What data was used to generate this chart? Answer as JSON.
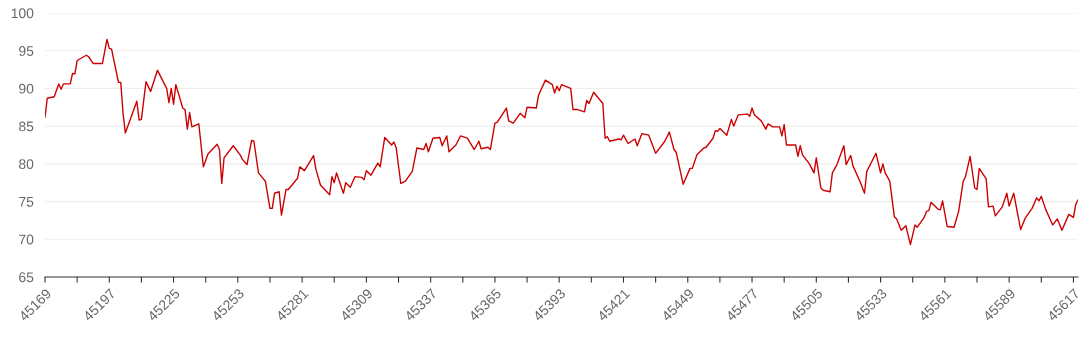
{
  "chart_data": {
    "type": "line",
    "grid": "y",
    "marker": "none",
    "line_style": "solid",
    "xlim": [
      45169,
      45619
    ],
    "ylim": [
      65,
      100
    ],
    "yticks": [
      65,
      70,
      75,
      80,
      85,
      90,
      95,
      100
    ],
    "xticks": [
      45169,
      {
        "value": 45183,
        "label": null
      },
      45197,
      {
        "value": 45211,
        "label": null
      },
      45225,
      {
        "value": 45239,
        "label": null
      },
      45253,
      {
        "value": 45267,
        "label": null
      },
      45281,
      {
        "value": 45295,
        "label": null
      },
      45309,
      {
        "value": 45323,
        "label": null
      },
      45337,
      {
        "value": 45351,
        "label": null
      },
      45365,
      {
        "value": 45379,
        "label": null
      },
      45393,
      {
        "value": 45407,
        "label": null
      },
      45421,
      {
        "value": 45435,
        "label": null
      },
      45449,
      {
        "value": 45463,
        "label": null
      },
      45477,
      {
        "value": 45491,
        "label": null
      },
      45505,
      {
        "value": 45519,
        "label": null
      },
      45533,
      {
        "value": 45547,
        "label": null
      },
      45561,
      {
        "value": 45575,
        "label": null
      },
      45589,
      {
        "value": 45603,
        "label": null
      },
      45617
    ],
    "x": [
      45169,
      45170,
      45173,
      45175,
      45176,
      45177,
      45180,
      45181,
      45182,
      45183,
      45187,
      45188,
      45190,
      45194,
      45196,
      45197,
      45198,
      45201,
      45202,
      45203,
      45204,
      45209,
      45210,
      45211,
      45213,
      45215,
      45218,
      45222,
      45223,
      45224,
      45225,
      45226,
      45229,
      45230,
      45231,
      45232,
      45233,
      45236,
      45238,
      45240,
      45244,
      45245,
      45246,
      45247,
      45251,
      45254,
      45255,
      45257,
      45259,
      45260,
      45262,
      45265,
      45267,
      45268,
      45269,
      45271,
      45272,
      45274,
      45275,
      45279,
      45280,
      45282,
      45286,
      45287,
      45289,
      45293,
      45294,
      45295,
      45296,
      45299,
      45300,
      45302,
      45304,
      45307,
      45308,
      45309,
      45311,
      45314,
      45315,
      45317,
      45320,
      45321,
      45322,
      45324,
      45326,
      45329,
      45331,
      45334,
      45335,
      45336,
      45338,
      45341,
      45342,
      45344,
      45345,
      45348,
      45350,
      45353,
      45356,
      45358,
      45359,
      45362,
      45363,
      45365,
      45366,
      45370,
      45371,
      45373,
      45376,
      45378,
      45379,
      45383,
      45384,
      45387,
      45390,
      45391,
      45392,
      45393,
      45394,
      45398,
      45399,
      45401,
      45404,
      45405,
      45406,
      45408,
      45412,
      45413,
      45414,
      45415,
      45419,
      45420,
      45421,
      45423,
      45426,
      45427,
      45429,
      45432,
      45435,
      45439,
      45441,
      45443,
      45444,
      45447,
      45450,
      45451,
      45453,
      45456,
      45457,
      45460,
      45461,
      45462,
      45463,
      45466,
      45468,
      45469,
      45471,
      45475,
      45476,
      45477,
      45478,
      45481,
      45483,
      45484,
      45486,
      45489,
      45490,
      45491,
      45492,
      45496,
      45497,
      45498,
      45499,
      45502,
      45504,
      45505,
      45507,
      45508,
      45511,
      45512,
      45514,
      45517,
      45518,
      45520,
      45521,
      45524,
      45526,
      45527,
      45531,
      45533,
      45534,
      45535,
      45537,
      45539,
      45540,
      45542,
      45544,
      45546,
      45548,
      45549,
      45552,
      45553,
      45554,
      45555,
      45558,
      45559,
      45560,
      45562,
      45565,
      45567,
      45569,
      45570,
      45572,
      45574,
      45575,
      45576,
      45579,
      45580,
      45582,
      45583,
      45586,
      45588,
      45589,
      45591,
      45594,
      45596,
      45599,
      45601,
      45602,
      45603,
      45605,
      45608,
      45610,
      45612,
      45615,
      45617,
      45618,
      45619
    ],
    "series": [
      {
        "color": "#cc0000",
        "values": [
          86.2,
          88.7,
          88.9,
          90.6,
          89.9,
          90.6,
          90.6,
          92.0,
          91.9,
          93.7,
          94.4,
          94.2,
          93.3,
          93.3,
          96.5,
          95.3,
          95.2,
          90.8,
          90.8,
          86.7,
          84.1,
          88.3,
          85.8,
          85.9,
          90.9,
          89.6,
          92.4,
          90.0,
          88.1,
          90.0,
          87.9,
          90.5,
          87.4,
          87.2,
          84.6,
          86.8,
          84.9,
          85.3,
          79.6,
          81.3,
          82.6,
          81.9,
          77.4,
          80.8,
          82.4,
          81.2,
          80.6,
          79.9,
          83.1,
          83.0,
          78.8,
          77.7,
          74.1,
          74.1,
          76.1,
          76.3,
          73.2,
          76.6,
          76.6,
          78.1,
          79.6,
          79.1,
          81.1,
          79.3,
          77.2,
          75.9,
          78.3,
          77.5,
          78.8,
          76.1,
          77.5,
          76.9,
          78.3,
          78.2,
          77.9,
          79.1,
          78.5,
          80.1,
          79.6,
          83.5,
          82.5,
          82.9,
          82.1,
          77.4,
          77.7,
          79.0,
          82.1,
          81.9,
          82.7,
          81.6,
          83.4,
          83.5,
          82.4,
          83.7,
          81.6,
          82.5,
          83.7,
          83.4,
          81.9,
          83.0,
          82.0,
          82.2,
          81.9,
          85.4,
          85.5,
          87.4,
          85.7,
          85.4,
          86.7,
          86.1,
          87.5,
          87.4,
          89.1,
          91.1,
          90.5,
          89.4,
          90.3,
          89.7,
          90.5,
          90.0,
          87.2,
          87.2,
          86.9,
          88.4,
          88.0,
          89.5,
          88.0,
          83.4,
          83.6,
          83.0,
          83.3,
          83.2,
          83.8,
          82.7,
          83.3,
          82.4,
          84.0,
          83.8,
          81.4,
          83.0,
          84.2,
          81.9,
          81.5,
          77.3,
          79.4,
          79.4,
          81.2,
          82.1,
          82.2,
          83.4,
          84.4,
          84.3,
          84.7,
          83.8,
          85.9,
          85.0,
          86.5,
          86.6,
          86.3,
          87.4,
          86.5,
          85.7,
          84.6,
          85.3,
          84.9,
          84.9,
          83.7,
          85.2,
          82.5,
          82.5,
          81.0,
          82.4,
          81.2,
          80.0,
          78.8,
          80.8,
          76.8,
          76.5,
          76.3,
          78.8,
          79.9,
          82.4,
          79.9,
          81.1,
          79.7,
          77.7,
          76.1,
          79.0,
          81.4,
          78.8,
          80.0,
          78.8,
          77.7,
          73.0,
          72.7,
          71.2,
          71.8,
          69.3,
          71.9,
          71.6,
          72.9,
          73.7,
          73.8,
          74.9,
          74.0,
          73.9,
          75.1,
          71.7,
          71.6,
          73.7,
          77.7,
          78.3,
          81.0,
          76.8,
          76.6,
          79.4,
          78.0,
          74.3,
          74.4,
          73.1,
          74.3,
          76.1,
          74.4,
          76.1,
          71.3,
          72.8,
          74.1,
          75.5,
          75.1,
          75.7,
          73.9,
          71.9,
          72.7,
          71.2,
          73.3,
          72.9,
          74.6,
          75.2
        ]
      }
    ]
  }
}
